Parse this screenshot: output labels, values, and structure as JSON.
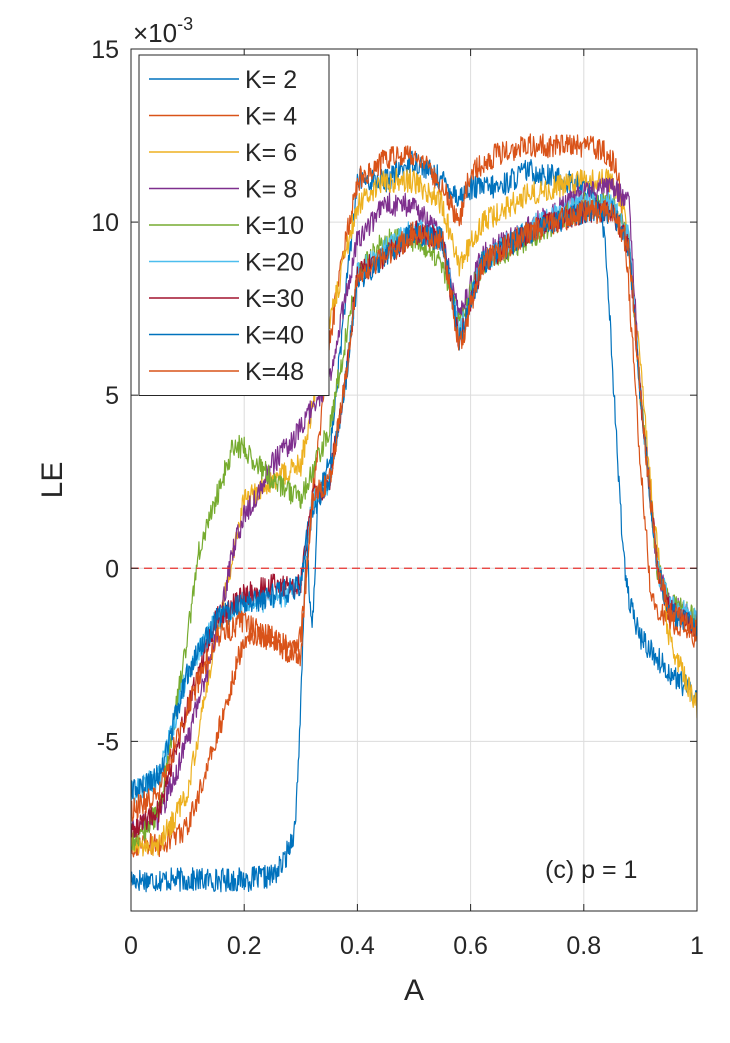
{
  "chart_data": {
    "type": "line",
    "xlabel": "A",
    "ylabel": "LE",
    "xlim": [
      0,
      1
    ],
    "ylim": [
      -0.0099,
      0.015
    ],
    "y_exponent_label": "×10",
    "y_exponent_power": "-3",
    "x_ticks": [
      0,
      0.2,
      0.4,
      0.6,
      0.8,
      1
    ],
    "x_tick_labels": [
      "0",
      "0.2",
      "0.4",
      "0.6",
      "0.8",
      "1"
    ],
    "y_ticks": [
      -0.005,
      0,
      0.005,
      0.01,
      0.015
    ],
    "y_tick_labels": [
      "-5",
      "0",
      "5",
      "10",
      "15"
    ],
    "grid": true,
    "legend_position": "top-left",
    "annotation": "(c) p = 1",
    "reference_line": {
      "y": 0,
      "style": "dashed",
      "color": "#e8322e"
    },
    "series": [
      {
        "name": "K= 2",
        "color": "#0072BD",
        "x": [
          0,
          0.1,
          0.2,
          0.25,
          0.27,
          0.29,
          0.3,
          0.31,
          0.33,
          0.35,
          0.38,
          0.4,
          0.42,
          0.45,
          0.5,
          0.55,
          0.58,
          0.6,
          0.65,
          0.7,
          0.75,
          0.8,
          0.83,
          0.84,
          0.85,
          0.86,
          0.87,
          0.88,
          0.9,
          0.95,
          1
        ],
        "y": [
          -0.009,
          -0.009,
          -0.009,
          -0.0089,
          -0.0085,
          -0.0075,
          -0.004,
          0.001,
          0.002,
          0.003,
          0.008,
          0.0112,
          0.0112,
          0.0112,
          0.0118,
          0.0112,
          0.0107,
          0.011,
          0.011,
          0.0115,
          0.0113,
          0.011,
          0.0105,
          0.009,
          0.006,
          0.003,
          0.0005,
          -0.001,
          -0.002,
          -0.003,
          -0.0037
        ]
      },
      {
        "name": "K= 4",
        "color": "#D95319",
        "x": [
          0,
          0.05,
          0.1,
          0.15,
          0.2,
          0.25,
          0.3,
          0.32,
          0.35,
          0.38,
          0.4,
          0.42,
          0.45,
          0.5,
          0.55,
          0.58,
          0.6,
          0.65,
          0.7,
          0.75,
          0.8,
          0.84,
          0.86,
          0.88,
          0.9,
          0.92,
          0.95,
          1
        ],
        "y": [
          -0.008,
          -0.008,
          -0.0075,
          -0.005,
          -0.002,
          -0.002,
          -0.0025,
          0.002,
          0.0065,
          0.0095,
          0.0112,
          0.0115,
          0.0118,
          0.012,
          0.011,
          0.01,
          0.0115,
          0.012,
          0.0122,
          0.0122,
          0.0122,
          0.012,
          0.0115,
          0.008,
          0.003,
          -0.001,
          -0.0015,
          -0.002
        ]
      },
      {
        "name": "K= 6",
        "color": "#EDB120",
        "x": [
          0,
          0.05,
          0.1,
          0.15,
          0.2,
          0.25,
          0.3,
          0.35,
          0.4,
          0.45,
          0.5,
          0.55,
          0.58,
          0.62,
          0.7,
          0.8,
          0.85,
          0.87,
          0.9,
          0.92,
          0.95,
          1
        ],
        "y": [
          -0.008,
          -0.008,
          -0.0065,
          -0.002,
          0.002,
          0.0025,
          0.003,
          0.007,
          0.0105,
          0.0112,
          0.0112,
          0.0105,
          0.0087,
          0.01,
          0.0108,
          0.0112,
          0.0112,
          0.0105,
          0.006,
          0.002,
          -0.002,
          -0.004
        ]
      },
      {
        "name": "K= 8",
        "color": "#7E2F8E",
        "x": [
          0,
          0.05,
          0.1,
          0.15,
          0.18,
          0.2,
          0.25,
          0.3,
          0.35,
          0.4,
          0.45,
          0.5,
          0.55,
          0.58,
          0.62,
          0.7,
          0.8,
          0.85,
          0.88,
          0.9,
          0.93,
          0.95,
          1
        ],
        "y": [
          -0.0075,
          -0.0072,
          -0.005,
          -0.002,
          0.0005,
          0.0015,
          0.003,
          0.004,
          0.0055,
          0.0095,
          0.0105,
          0.0105,
          0.0095,
          0.0072,
          0.009,
          0.0098,
          0.0108,
          0.011,
          0.0105,
          0.005,
          0,
          -0.001,
          -0.0015
        ]
      },
      {
        "name": "K=10",
        "color": "#77AC30",
        "x": [
          0,
          0.05,
          0.1,
          0.12,
          0.15,
          0.18,
          0.2,
          0.25,
          0.3,
          0.35,
          0.4,
          0.45,
          0.5,
          0.55,
          0.58,
          0.62,
          0.7,
          0.8,
          0.85,
          0.88,
          0.9,
          0.93,
          0.95,
          1
        ],
        "y": [
          -0.008,
          -0.007,
          -0.002,
          0.0005,
          0.002,
          0.0035,
          0.0035,
          0.0025,
          0.002,
          0.004,
          0.0085,
          0.0095,
          0.0095,
          0.0088,
          0.007,
          0.0088,
          0.0095,
          0.0105,
          0.0105,
          0.0095,
          0.005,
          0,
          -0.001,
          -0.0015
        ]
      },
      {
        "name": "K=20",
        "color": "#4DBEEE",
        "x": [
          0,
          0.05,
          0.1,
          0.15,
          0.2,
          0.25,
          0.3,
          0.32,
          0.35,
          0.38,
          0.4,
          0.45,
          0.5,
          0.55,
          0.58,
          0.62,
          0.7,
          0.8,
          0.85,
          0.88,
          0.9,
          0.93,
          0.95,
          1
        ],
        "y": [
          -0.0065,
          -0.006,
          -0.003,
          -0.0015,
          -0.001,
          -0.001,
          -0.0005,
          0.002,
          0.0025,
          0.0055,
          0.0085,
          0.0092,
          0.0098,
          0.0095,
          0.0068,
          0.0088,
          0.0098,
          0.0105,
          0.0105,
          0.0095,
          0.005,
          0,
          -0.001,
          -0.0015
        ]
      },
      {
        "name": "K=30",
        "color": "#A2142F",
        "x": [
          0,
          0.05,
          0.1,
          0.15,
          0.2,
          0.25,
          0.3,
          0.32,
          0.35,
          0.38,
          0.4,
          0.45,
          0.5,
          0.55,
          0.58,
          0.62,
          0.7,
          0.8,
          0.85,
          0.88,
          0.9,
          0.93,
          0.95,
          1
        ],
        "y": [
          -0.0075,
          -0.007,
          -0.004,
          -0.0015,
          -0.0008,
          -0.0005,
          -0.0005,
          0.002,
          0.0025,
          0.0055,
          0.0085,
          0.009,
          0.0097,
          0.0095,
          0.0065,
          0.0088,
          0.0097,
          0.0103,
          0.0103,
          0.0093,
          0.005,
          0,
          -0.0012,
          -0.0017
        ]
      },
      {
        "name": "K=40",
        "color": "#0072BD",
        "x": [
          0,
          0.05,
          0.1,
          0.15,
          0.2,
          0.25,
          0.3,
          0.31,
          0.32,
          0.33,
          0.35,
          0.38,
          0.4,
          0.45,
          0.5,
          0.55,
          0.58,
          0.62,
          0.7,
          0.8,
          0.85,
          0.88,
          0.9,
          0.93,
          0.95,
          1
        ],
        "y": [
          -0.0065,
          -0.006,
          -0.003,
          -0.0015,
          -0.001,
          -0.0008,
          -0.0005,
          0.001,
          -0.002,
          0.002,
          0.0025,
          0.0055,
          0.0083,
          0.009,
          0.0097,
          0.0095,
          0.0066,
          0.0088,
          0.0097,
          0.0103,
          0.0103,
          0.0093,
          0.005,
          0,
          -0.0012,
          -0.0017
        ]
      },
      {
        "name": "K=48",
        "color": "#D95319",
        "x": [
          0,
          0.05,
          0.1,
          0.15,
          0.2,
          0.25,
          0.28,
          0.3,
          0.32,
          0.35,
          0.38,
          0.4,
          0.45,
          0.5,
          0.55,
          0.58,
          0.62,
          0.7,
          0.8,
          0.85,
          0.88,
          0.9,
          0.93,
          0.95,
          1
        ],
        "y": [
          -0.007,
          -0.0065,
          -0.004,
          -0.002,
          -0.0015,
          -0.002,
          -0.0025,
          -0.002,
          0.002,
          0.0025,
          0.0055,
          0.0085,
          0.009,
          0.0097,
          0.0095,
          0.0063,
          0.0088,
          0.0097,
          0.0103,
          0.0103,
          0.0093,
          0.005,
          0,
          -0.0012,
          -0.0017
        ]
      }
    ]
  }
}
